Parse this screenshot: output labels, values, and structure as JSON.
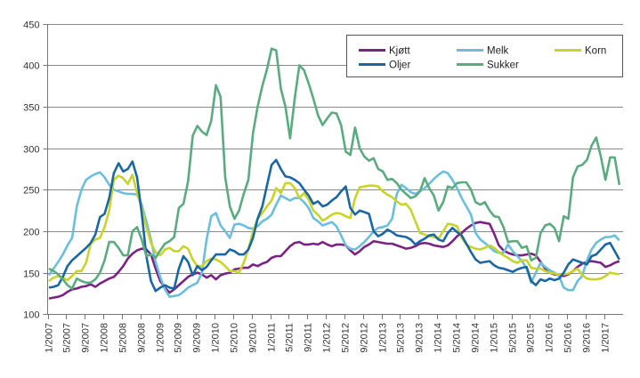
{
  "chart_data": {
    "type": "line",
    "title": "",
    "xlabel": "",
    "ylabel": "",
    "ylim": [
      100,
      450
    ],
    "y_ticks": [
      "100",
      "150",
      "200",
      "250",
      "300",
      "350",
      "400",
      "450"
    ],
    "grid": "horizontal",
    "legend_position": "top-right",
    "x_tick_labels": [
      "1/2007",
      "5/2007",
      "9/2007",
      "1/2008",
      "5/2008",
      "9/2008",
      "1/2009",
      "5/2009",
      "9/2009",
      "1/2010",
      "5/2010",
      "9/2010",
      "1/2011",
      "5/2011",
      "9/2011",
      "1/2012",
      "5/2012",
      "9/2012",
      "1/2013",
      "5/2013",
      "9/2013",
      "1/2014",
      "5/2014",
      "9/2014",
      "1/2015",
      "5/2015",
      "9/2015",
      "1/2016",
      "5/2016",
      "9/2016",
      "1/2017"
    ],
    "x": [
      "1/2007",
      "2/2007",
      "3/2007",
      "4/2007",
      "5/2007",
      "6/2007",
      "7/2007",
      "8/2007",
      "9/2007",
      "10/2007",
      "11/2007",
      "12/2007",
      "1/2008",
      "2/2008",
      "3/2008",
      "4/2008",
      "5/2008",
      "6/2008",
      "7/2008",
      "8/2008",
      "9/2008",
      "10/2008",
      "11/2008",
      "12/2008",
      "1/2009",
      "2/2009",
      "3/2009",
      "4/2009",
      "5/2009",
      "6/2009",
      "7/2009",
      "8/2009",
      "9/2009",
      "10/2009",
      "11/2009",
      "12/2009",
      "1/2010",
      "2/2010",
      "3/2010",
      "4/2010",
      "5/2010",
      "6/2010",
      "7/2010",
      "8/2010",
      "9/2010",
      "10/2010",
      "11/2010",
      "12/2010",
      "1/2011",
      "2/2011",
      "3/2011",
      "4/2011",
      "5/2011",
      "6/2011",
      "7/2011",
      "8/2011",
      "9/2011",
      "10/2011",
      "11/2011",
      "12/2011",
      "1/2012",
      "2/2012",
      "3/2012",
      "4/2012",
      "5/2012",
      "6/2012",
      "7/2012",
      "8/2012",
      "9/2012",
      "10/2012",
      "11/2012",
      "12/2012",
      "1/2013",
      "2/2013",
      "3/2013",
      "4/2013",
      "5/2013",
      "6/2013",
      "7/2013",
      "8/2013",
      "9/2013",
      "10/2013",
      "11/2013",
      "12/2013",
      "1/2014",
      "2/2014",
      "3/2014",
      "4/2014",
      "5/2014",
      "6/2014",
      "7/2014",
      "8/2014",
      "9/2014",
      "10/2014",
      "11/2014",
      "12/2014",
      "1/2015",
      "2/2015",
      "3/2015",
      "4/2015",
      "5/2015",
      "6/2015",
      "7/2015",
      "8/2015",
      "9/2015",
      "10/2015",
      "11/2015",
      "12/2015",
      "1/2016",
      "2/2016",
      "3/2016",
      "4/2016",
      "5/2016",
      "6/2016",
      "7/2016",
      "8/2016",
      "9/2016",
      "10/2016",
      "11/2016",
      "12/2016",
      "1/2017",
      "2/2017",
      "3/2017",
      "4/2017"
    ],
    "series": [
      {
        "name": "Kjøtt",
        "color": "#7b2382",
        "values": [
          119,
          120,
          121,
          123,
          127,
          130,
          131,
          133,
          134,
          136,
          133,
          137,
          140,
          143,
          145,
          151,
          158,
          167,
          173,
          177,
          179,
          178,
          172,
          155,
          140,
          132,
          126,
          130,
          135,
          140,
          145,
          148,
          150,
          148,
          144,
          147,
          142,
          147,
          149,
          150,
          154,
          155,
          156,
          156,
          160,
          158,
          161,
          163,
          168,
          170,
          170,
          176,
          182,
          186,
          187,
          184,
          184,
          185,
          184,
          187,
          184,
          182,
          184,
          184,
          183,
          177,
          172,
          176,
          181,
          184,
          188,
          187,
          186,
          185,
          185,
          183,
          181,
          179,
          180,
          182,
          185,
          186,
          185,
          183,
          182,
          181,
          183,
          188,
          194,
          198,
          203,
          207,
          210,
          211,
          210,
          209,
          197,
          183,
          177,
          174,
          172,
          171,
          171,
          172,
          173,
          171,
          163,
          155,
          150,
          148,
          147,
          146,
          148,
          152,
          157,
          161,
          163,
          164,
          163,
          162,
          157,
          159,
          162,
          164
        ]
      },
      {
        "name": "Melk",
        "color": "#6bbfdd",
        "values": [
          147,
          155,
          163,
          172,
          183,
          192,
          230,
          250,
          262,
          266,
          269,
          271,
          265,
          256,
          250,
          248,
          246,
          245,
          245,
          244,
          232,
          212,
          190,
          163,
          145,
          130,
          121,
          122,
          123,
          127,
          132,
          135,
          138,
          150,
          190,
          218,
          222,
          207,
          200,
          192,
          208,
          209,
          207,
          204,
          203,
          206,
          212,
          215,
          220,
          232,
          243,
          240,
          237,
          240,
          240,
          235,
          228,
          216,
          212,
          207,
          209,
          211,
          206,
          195,
          183,
          179,
          178,
          182,
          187,
          193,
          200,
          204,
          205,
          207,
          215,
          245,
          256,
          252,
          247,
          245,
          248,
          252,
          257,
          263,
          268,
          272,
          270,
          262,
          252,
          240,
          230,
          220,
          198,
          190,
          186,
          181,
          176,
          174,
          174,
          184,
          176,
          170,
          164,
          155,
          138,
          150,
          162,
          157,
          153,
          150,
          146,
          132,
          129,
          129,
          140,
          146,
          165,
          178,
          186,
          190,
          193,
          193,
          195,
          189
        ]
      },
      {
        "name": "Korn",
        "color": "#c8d42a",
        "values": [
          140,
          144,
          146,
          144,
          141,
          146,
          152,
          152,
          162,
          185,
          190,
          192,
          205,
          225,
          262,
          267,
          264,
          257,
          268,
          246,
          228,
          205,
          186,
          175,
          171,
          178,
          180,
          176,
          176,
          182,
          179,
          166,
          158,
          158,
          164,
          167,
          166,
          163,
          158,
          152,
          152,
          150,
          162,
          178,
          200,
          215,
          222,
          230,
          237,
          252,
          246,
          258,
          258,
          252,
          240,
          246,
          238,
          225,
          220,
          213,
          216,
          220,
          222,
          221,
          218,
          216,
          240,
          253,
          254,
          255,
          255,
          254,
          248,
          244,
          241,
          236,
          232,
          233,
          226,
          212,
          198,
          196,
          194,
          193,
          191,
          200,
          209,
          208,
          206,
          192,
          184,
          181,
          179,
          178,
          180,
          183,
          180,
          175,
          171,
          168,
          164,
          162,
          165,
          165,
          156,
          155,
          155,
          152,
          150,
          149,
          148,
          148,
          149,
          152,
          155,
          147,
          143,
          142,
          142,
          143,
          146,
          150,
          149,
          148
        ]
      },
      {
        "name": "Oljer",
        "color": "#1a67a3",
        "values": [
          132,
          133,
          135,
          145,
          158,
          165,
          170,
          175,
          180,
          186,
          196,
          217,
          221,
          240,
          270,
          282,
          272,
          275,
          284,
          265,
          222,
          170,
          140,
          128,
          132,
          135,
          132,
          131,
          155,
          170,
          163,
          147,
          158,
          153,
          157,
          165,
          172,
          172,
          172,
          178,
          176,
          172,
          172,
          178,
          192,
          215,
          230,
          255,
          280,
          286,
          275,
          266,
          265,
          262,
          258,
          250,
          243,
          233,
          236,
          230,
          232,
          237,
          241,
          248,
          254,
          228,
          220,
          225,
          223,
          221,
          200,
          194,
          197,
          202,
          199,
          195,
          194,
          193,
          190,
          184,
          188,
          191,
          195,
          196,
          190,
          188,
          198,
          204,
          199,
          195,
          185,
          175,
          166,
          162,
          163,
          164,
          159,
          156,
          155,
          153,
          151,
          154,
          156,
          157,
          140,
          135,
          142,
          140,
          143,
          141,
          143,
          150,
          160,
          166,
          164,
          162,
          160,
          170,
          172,
          178,
          184,
          186,
          176,
          166
        ]
      },
      {
        "name": "Sukker",
        "color": "#5aab80",
        "values": [
          155,
          152,
          148,
          142,
          135,
          131,
          143,
          140,
          138,
          138,
          142,
          150,
          165,
          187,
          187,
          180,
          171,
          171,
          200,
          205,
          190,
          170,
          172,
          168,
          177,
          185,
          188,
          193,
          228,
          233,
          260,
          315,
          327,
          320,
          316,
          333,
          376,
          362,
          265,
          230,
          215,
          225,
          245,
          262,
          318,
          350,
          375,
          395,
          420,
          418,
          372,
          350,
          312,
          360,
          400,
          394,
          378,
          360,
          340,
          328,
          336,
          343,
          342,
          328,
          296,
          292,
          325,
          300,
          290,
          285,
          288,
          275,
          272,
          262,
          263,
          258,
          250,
          245,
          240,
          242,
          248,
          264,
          252,
          243,
          225,
          235,
          254,
          252,
          258,
          259,
          259,
          250,
          235,
          232,
          235,
          225,
          218,
          217,
          205,
          187,
          188,
          188,
          180,
          182,
          165,
          168,
          198,
          207,
          209,
          204,
          188,
          218,
          215,
          265,
          278,
          280,
          286,
          303,
          313,
          290,
          262,
          289,
          289,
          256
        ]
      }
    ],
    "legend": [
      {
        "label": "Kjøtt",
        "color": "#7b2382"
      },
      {
        "label": "Melk",
        "color": "#6bbfdd"
      },
      {
        "label": "Korn",
        "color": "#c8d42a"
      },
      {
        "label": "Oljer",
        "color": "#1a67a3"
      },
      {
        "label": "Sukker",
        "color": "#5aab80"
      }
    ]
  }
}
